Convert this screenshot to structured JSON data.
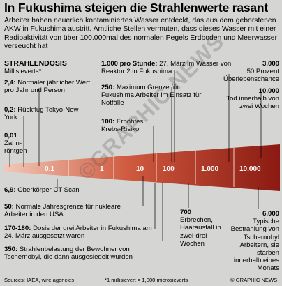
{
  "headline": "In Fukushima steigen die Strahlenwerte rasant",
  "intro": "Arbeiter haben neuerlich kontaminiertes Wasser entdeckt, das aus dem geborstenen AKW in Fukushima austritt. Amtliche Stellen vermuten, dass dieses Wasser mit einer Radioaktivität von über 100.000mal des normalen Pegels Erdboden und Meerwasser verseucht hat",
  "section_title": "STRAHLENDOSIS",
  "section_unit": "Millisieverts*",
  "scale_ticks": [
    "0.1",
    "1",
    "10",
    "100",
    "1.000",
    "10.000"
  ],
  "top_labels": [
    {
      "value": "2,4:",
      "text": "Normaler jährlicher Wert pro Jahr und Person"
    },
    {
      "value": "0,2:",
      "text": "Rückflug Tokyo-New York"
    },
    {
      "value": "0,01",
      "text": "Zahn-röntgen"
    },
    {
      "value": "1.000 pro Stunde:",
      "text": "27. März im Wasser von Reaktor 2 in Fukushima"
    },
    {
      "value": "250:",
      "text": "Maximum Grenze für Fukushima Arbeiter im Einsatz für Notfälle"
    },
    {
      "value": "100:",
      "text": "Erhöhtes Krebs-Risiko"
    },
    {
      "value": "3.000",
      "text": "50 Prozent Überlebenschance"
    },
    {
      "value": "10.000",
      "text": "Tod innerhalb von zwei Wochen"
    }
  ],
  "bottom_labels": [
    {
      "value": "6,9:",
      "text": "Oberkörper CT Scan"
    },
    {
      "value": "50:",
      "text": "Normale Jahresgrenze für nukleare Arbeiter in den USA"
    },
    {
      "value": "170-180:",
      "text": "Dosis der drei Arbeiter in Fukushima am 24. März ausgesetzt waren"
    },
    {
      "value": "350:",
      "text": "Strahlenbelastung der Bewohner von Tschernobyl, die dann ausgesiedelt wurden"
    },
    {
      "value": "700",
      "text": "Erbrechen, Haarausfall in zwei-drei Wochen"
    },
    {
      "value": "6.000",
      "text": "Typische Bestrahlung von Tschernobyl Arbeitern, sie starben innerhalb eines Monats"
    }
  ],
  "watermark": "©GRAPHIC NEWS",
  "footer": {
    "sources": "Sources: IAEA, wire agencies",
    "footnote": "*1 millisievert = 1,000 microsieverts",
    "credit": "© GRAPHIC NEWS"
  },
  "colors": {
    "background": "#d5d5d3",
    "wedge_light": "#f2c9b8",
    "wedge_dark": "#8a1a12",
    "leader": "#000000"
  }
}
